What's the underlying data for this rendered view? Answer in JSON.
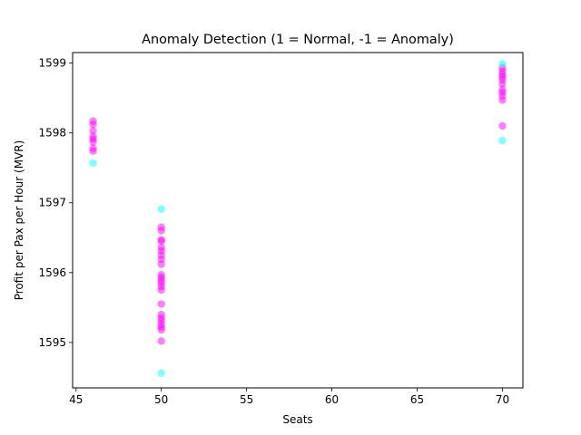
{
  "chart_data": {
    "type": "scatter",
    "title": "Anomaly Detection (1 = Normal, -1 = Anomaly)",
    "xlabel": "Seats",
    "ylabel": "Profit per Pax per Hour (MVR)",
    "xlim": [
      44.8,
      71.2
    ],
    "ylim": [
      1594.35,
      1599.15
    ],
    "xticks": [
      45,
      50,
      55,
      60,
      65,
      70
    ],
    "yticks": [
      1595,
      1596,
      1597,
      1598,
      1599
    ],
    "grid": false,
    "legend": "none",
    "colors": {
      "normal": "#ff00ff",
      "anomaly": "#00ffff"
    },
    "series": [
      {
        "label": "1",
        "points": [
          [
            46,
            1598.17
          ],
          [
            46,
            1598.12
          ],
          [
            46,
            1598.03
          ],
          [
            46,
            1597.95
          ],
          [
            46,
            1597.91
          ],
          [
            46,
            1597.87
          ],
          [
            46,
            1597.78
          ],
          [
            46,
            1597.74
          ],
          [
            50,
            1596.65
          ],
          [
            50,
            1596.6
          ],
          [
            50,
            1596.47
          ],
          [
            50,
            1596.45
          ],
          [
            50,
            1596.36
          ],
          [
            50,
            1596.31
          ],
          [
            50,
            1596.25
          ],
          [
            50,
            1596.19
          ],
          [
            50,
            1596.12
          ],
          [
            50,
            1595.97
          ],
          [
            50,
            1595.93
          ],
          [
            50,
            1595.89
          ],
          [
            50,
            1595.85
          ],
          [
            50,
            1595.8
          ],
          [
            50,
            1595.75
          ],
          [
            50,
            1595.55
          ],
          [
            50,
            1595.4
          ],
          [
            50,
            1595.35
          ],
          [
            50,
            1595.31
          ],
          [
            50,
            1595.26
          ],
          [
            50,
            1595.22
          ],
          [
            50,
            1595.18
          ],
          [
            50,
            1595.02
          ],
          [
            70,
            1598.93
          ],
          [
            70,
            1598.88
          ],
          [
            70,
            1598.84
          ],
          [
            70,
            1598.8
          ],
          [
            70,
            1598.76
          ],
          [
            70,
            1598.7
          ],
          [
            70,
            1598.62
          ],
          [
            70,
            1598.58
          ],
          [
            70,
            1598.53
          ],
          [
            70,
            1598.47
          ],
          [
            70,
            1598.1
          ]
        ]
      },
      {
        "label": "-1",
        "points": [
          [
            46,
            1597.57
          ],
          [
            50,
            1596.91
          ],
          [
            50,
            1594.56
          ],
          [
            70,
            1598.99
          ],
          [
            70,
            1597.89
          ]
        ]
      }
    ]
  }
}
